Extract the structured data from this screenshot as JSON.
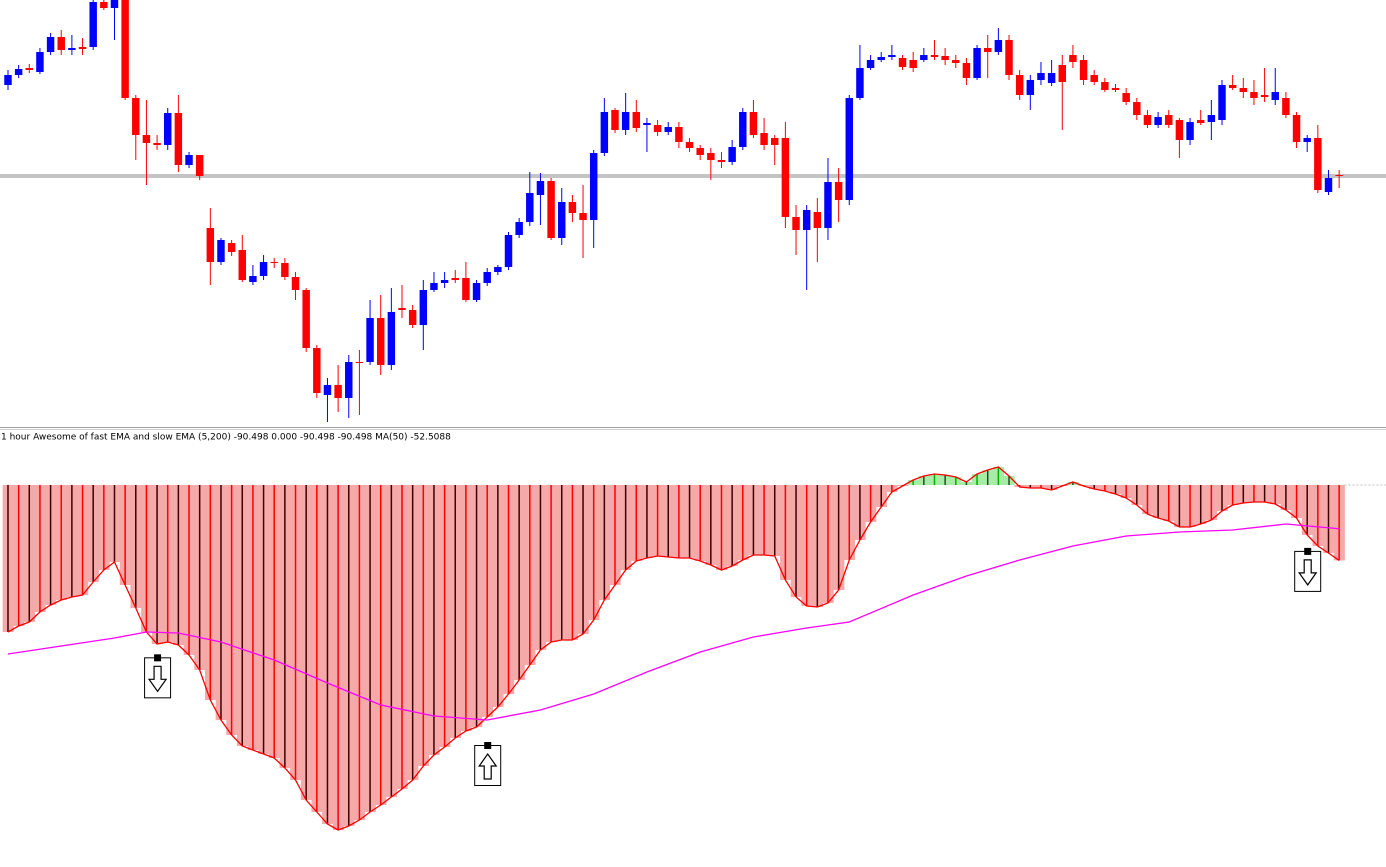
{
  "chart_data": [
    {
      "type": "candlestick",
      "xlim": [
        -0.75,
        129.4
      ],
      "ylim": [
        0,
        430
      ],
      "up_color": "#0000ff",
      "down_color": "#ff0000",
      "level": 254,
      "level_color": "#888888",
      "open": [
        345,
        355,
        362,
        358,
        378,
        393,
        380,
        383,
        383,
        428,
        422,
        430,
        332,
        295,
        287,
        285,
        317,
        265,
        275,
        202,
        168,
        187,
        180,
        148,
        154,
        168,
        167,
        153,
        140,
        82,
        35,
        45,
        32,
        68,
        68,
        112,
        65,
        122,
        120,
        105,
        140,
        147,
        152,
        152,
        130,
        147,
        158,
        163,
        195,
        208,
        235,
        249,
        192,
        228,
        217,
        210,
        277,
        320,
        300,
        318,
        305,
        305,
        298,
        303,
        288,
        282,
        277,
        270,
        268,
        283,
        318,
        297,
        292,
        292,
        213,
        200,
        218,
        202,
        248,
        230,
        332,
        362,
        370,
        373,
        372,
        370,
        370,
        375,
        374,
        370,
        367,
        352,
        382,
        378,
        390,
        355,
        335,
        350,
        347,
        365,
        375,
        370,
        355,
        348,
        342,
        337,
        328,
        315,
        305,
        315,
        310,
        290,
        310,
        308,
        310,
        345,
        342,
        338,
        335,
        330,
        332,
        315,
        288,
        292,
        238,
        255
      ],
      "high": [
        360,
        365,
        366,
        382,
        397,
        400,
        395,
        392,
        430,
        430,
        430,
        430,
        335,
        330,
        295,
        322,
        335,
        278,
        275,
        222,
        192,
        190,
        195,
        165,
        175,
        172,
        172,
        158,
        142,
        85,
        52,
        65,
        75,
        80,
        130,
        135,
        142,
        145,
        125,
        150,
        158,
        158,
        160,
        168,
        150,
        162,
        165,
        198,
        212,
        258,
        257,
        252,
        242,
        235,
        245,
        280,
        332,
        322,
        337,
        330,
        312,
        310,
        308,
        308,
        292,
        285,
        282,
        278,
        290,
        322,
        330,
        312,
        295,
        308,
        225,
        225,
        232,
        272,
        262,
        335,
        385,
        375,
        378,
        385,
        375,
        378,
        382,
        390,
        382,
        375,
        372,
        385,
        395,
        402,
        395,
        360,
        355,
        368,
        370,
        375,
        385,
        375,
        360,
        352,
        346,
        342,
        332,
        320,
        318,
        320,
        312,
        312,
        320,
        330,
        350,
        355,
        352,
        350,
        362,
        362,
        338,
        318,
        295,
        305,
        260,
        260
      ],
      "low": [
        340,
        352,
        357,
        356,
        375,
        375,
        375,
        375,
        380,
        420,
        390,
        330,
        270,
        245,
        280,
        280,
        258,
        262,
        250,
        145,
        165,
        174,
        148,
        145,
        150,
        162,
        150,
        130,
        78,
        32,
        8,
        18,
        12,
        15,
        65,
        55,
        60,
        112,
        102,
        80,
        138,
        142,
        147,
        128,
        128,
        144,
        155,
        160,
        192,
        204,
        205,
        190,
        185,
        208,
        172,
        182,
        274,
        297,
        295,
        298,
        278,
        294,
        295,
        282,
        278,
        270,
        250,
        262,
        265,
        280,
        292,
        280,
        265,
        202,
        175,
        140,
        168,
        190,
        208,
        225,
        330,
        360,
        368,
        370,
        360,
        358,
        368,
        370,
        365,
        362,
        345,
        350,
        352,
        375,
        350,
        330,
        320,
        345,
        344,
        300,
        362,
        345,
        345,
        338,
        338,
        325,
        310,
        302,
        302,
        302,
        272,
        285,
        305,
        290,
        305,
        340,
        332,
        325,
        328,
        325,
        312,
        282,
        278,
        237,
        235,
        242
      ],
      "close": [
        355,
        361,
        360,
        378,
        393,
        380,
        382,
        381,
        428,
        422,
        430,
        332,
        295,
        287,
        285,
        317,
        265,
        275,
        254,
        168,
        190,
        178,
        150,
        154,
        168,
        167,
        153,
        140,
        82,
        37,
        45,
        32,
        68,
        67,
        112,
        65,
        118,
        120,
        105,
        140,
        147,
        150,
        150,
        130,
        147,
        158,
        163,
        195,
        208,
        237,
        249,
        192,
        228,
        217,
        210,
        277,
        318,
        300,
        318,
        302,
        307,
        298,
        303,
        288,
        282,
        275,
        270,
        268,
        283,
        318,
        295,
        285,
        285,
        213,
        200,
        220,
        202,
        248,
        230,
        332,
        362,
        370,
        373,
        375,
        363,
        362,
        375,
        373,
        370,
        367,
        352,
        382,
        378,
        390,
        355,
        335,
        350,
        357,
        357,
        348,
        368,
        350,
        348,
        340,
        340,
        328,
        315,
        305,
        313,
        305,
        290,
        308,
        307,
        315,
        345,
        342,
        338,
        332,
        333,
        338,
        315,
        288,
        292,
        240,
        252,
        254
      ]
    },
    {
      "type": "histogram",
      "title": "1 hour Awesome of fast EMA and slow EMA (5,200) -90.498 0.000 -90.498 -90.498 MA(50) -52.5088",
      "xlim": [
        -0.75,
        129.4
      ],
      "ylim": [
        -458.4,
        48
      ],
      "negative_color": "#f6a9a9",
      "positive_color": "#a6eca6",
      "outline_color": "#ff0000",
      "zero_color": "#c0c0c0",
      "values": [
        -176.4,
        -169.2,
        -164.4,
        -152.4,
        -144,
        -138,
        -134.4,
        -132,
        -116.4,
        -102,
        -92.4,
        -120,
        -147.6,
        -176.4,
        -190.8,
        -188.4,
        -192,
        -204,
        -222,
        -258,
        -282,
        -300,
        -313.2,
        -318,
        -322.8,
        -327.6,
        -339.6,
        -354,
        -378,
        -392.4,
        -406.8,
        -414,
        -409.2,
        -402,
        -392.4,
        -384,
        -374.4,
        -364.8,
        -354,
        -337.2,
        -324,
        -314.4,
        -303.6,
        -295.2,
        -290.4,
        -278.4,
        -266.4,
        -250.8,
        -234,
        -216,
        -198,
        -188.4,
        -186,
        -186,
        -178.8,
        -162,
        -138,
        -120,
        -102,
        -91.2,
        -87.6,
        -85.2,
        -86.4,
        -87.6,
        -87.6,
        -91.2,
        -96,
        -102,
        -97.2,
        -90,
        -84,
        -84,
        -85.2,
        -114,
        -134.4,
        -145.2,
        -146.4,
        -141.6,
        -126,
        -90,
        -66,
        -44.4,
        -26.4,
        -8.4,
        -1.2,
        6,
        10.8,
        13.2,
        12,
        9.6,
        3.6,
        13.2,
        18,
        21.6,
        10.8,
        -2.4,
        -3.6,
        -3.6,
        -6,
        -1.2,
        3.6,
        -1.2,
        -4.8,
        -7.2,
        -10.8,
        -15.6,
        -24,
        -34.8,
        -39.6,
        -43.2,
        -50.4,
        -50.4,
        -46.8,
        -42,
        -31.2,
        -24,
        -21.6,
        -20.4,
        -20.4,
        -22.8,
        -30,
        -39.6,
        -60,
        -73.2,
        -81.6,
        -90.498
      ],
      "ma": {
        "color": "#ff00ff",
        "x": [
          0,
          5,
          10,
          13,
          16,
          20,
          25,
          30,
          35,
          40,
          45,
          50,
          55,
          60,
          65,
          70,
          75,
          79,
          85,
          90,
          95,
          100,
          105,
          110,
          115,
          120,
          125
        ],
        "values": [
          -202.8,
          -193.2,
          -183.6,
          -176.4,
          -177.6,
          -188.4,
          -210,
          -237.6,
          -264,
          -277.2,
          -282,
          -270,
          -250.8,
          -224.4,
          -200.4,
          -182.4,
          -171.6,
          -164.4,
          -132,
          -109.2,
          -90,
          -73.2,
          -61.2,
          -56.4,
          -54,
          -46.8,
          -52.5088
        ]
      },
      "sell_signals": [
        14,
        122
      ],
      "buy_signals": [
        45
      ]
    }
  ]
}
